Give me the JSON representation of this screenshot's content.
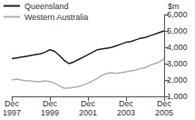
{
  "chart_data": {
    "type": "line",
    "ylabel": "$m",
    "categories": [
      "Dec 1997",
      null,
      null,
      null,
      null,
      null,
      null,
      null,
      "Dec 1999",
      null,
      null,
      null,
      null,
      null,
      null,
      null,
      "Dec 2001",
      null,
      null,
      null,
      null,
      null,
      null,
      null,
      "Dec 2003",
      null,
      null,
      null,
      null,
      null,
      null,
      null,
      "Dec 2005"
    ],
    "series": [
      {
        "name": "Queensland",
        "color": "#222222",
        "values": [
          3300,
          3350,
          3400,
          3450,
          3500,
          3550,
          3600,
          3700,
          3850,
          3750,
          3500,
          3200,
          3000,
          3100,
          3250,
          3400,
          3550,
          3700,
          3850,
          3900,
          3950,
          4000,
          4100,
          4200,
          4300,
          4350,
          4450,
          4550,
          4600,
          4700,
          4800,
          4900,
          5000
        ]
      },
      {
        "name": "Western Australia",
        "color": "#b0b0b0",
        "values": [
          2000,
          2050,
          2000,
          1950,
          1950,
          1900,
          1900,
          1950,
          1900,
          1800,
          1650,
          1500,
          1500,
          1550,
          1600,
          1700,
          1800,
          1950,
          2100,
          2300,
          2400,
          2450,
          2400,
          2450,
          2500,
          2550,
          2600,
          2700,
          2750,
          2900,
          3000,
          3100,
          3300
        ]
      }
    ],
    "ylim": [
      1000,
      6000
    ],
    "yticks": [
      1000,
      2000,
      3000,
      4000,
      5000,
      6000
    ],
    "grid": false,
    "legend": "top-left"
  }
}
